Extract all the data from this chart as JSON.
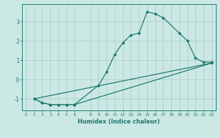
{
  "xlabel": "Humidex (Indice chaleur)",
  "ylabel": "",
  "bg_color": "#cce8e4",
  "line_color": "#1a7a6e",
  "grid_color": "#aacfcc",
  "xlim": [
    -0.5,
    23.5
  ],
  "ylim": [
    -1.6,
    3.9
  ],
  "xticks": [
    0,
    1,
    2,
    3,
    4,
    5,
    6,
    8,
    9,
    10,
    11,
    12,
    13,
    14,
    15,
    16,
    17,
    18,
    19,
    20,
    21,
    22,
    23
  ],
  "yticks": [
    -1,
    0,
    1,
    2,
    3
  ],
  "line1_x": [
    1,
    2,
    3,
    4,
    5,
    6,
    9,
    10,
    11,
    12,
    13,
    14,
    15,
    16,
    17,
    19,
    20,
    21,
    22,
    23
  ],
  "line1_y": [
    -1.0,
    -1.2,
    -1.3,
    -1.3,
    -1.3,
    -1.3,
    -0.3,
    0.4,
    1.3,
    1.9,
    2.3,
    2.4,
    3.5,
    3.4,
    3.2,
    2.4,
    2.0,
    1.1,
    0.9,
    0.9
  ],
  "line2_x": [
    1,
    2,
    3,
    4,
    5,
    6,
    23
  ],
  "line2_y": [
    -1.0,
    -1.2,
    -1.3,
    -1.3,
    -1.3,
    -1.3,
    0.85
  ],
  "line3_x": [
    1,
    23
  ],
  "line3_y": [
    -1.0,
    0.85
  ]
}
